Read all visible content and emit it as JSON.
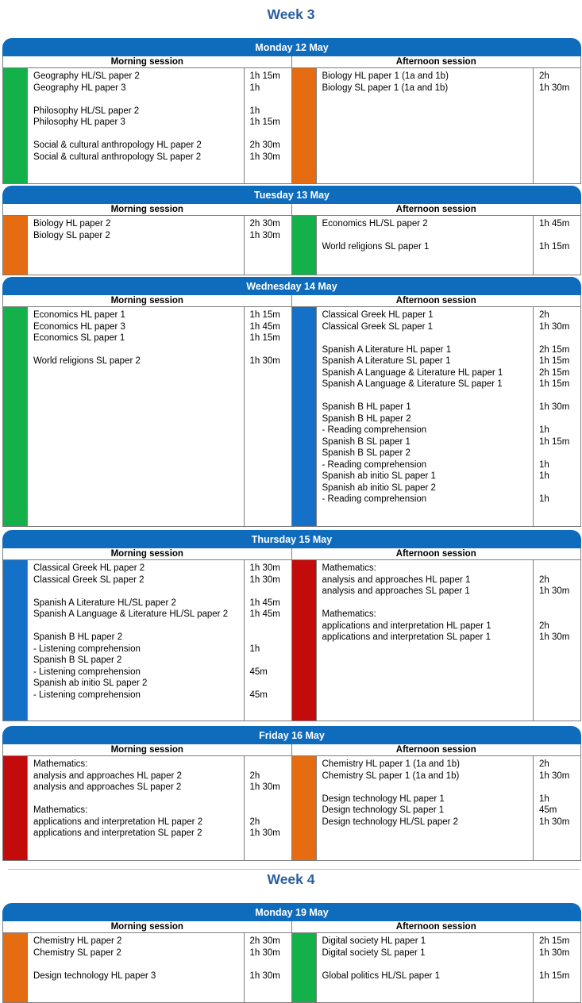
{
  "colors": {
    "green": "#14b14b",
    "orange": "#e56c10",
    "blue": "#1571c7",
    "red": "#c40b0b",
    "header_blue": "#0f6cbd",
    "title_blue": "#2c5f9e"
  },
  "weeks": [
    {
      "title": "Week 3",
      "days": [
        {
          "title": "Monday 12 May",
          "morning": {
            "label": "Morning session",
            "color": "green",
            "subjects": [
              "Geography HL/SL paper 2",
              "Geography HL paper 3",
              "",
              "Philosophy HL/SL paper 2",
              "Philosophy HL paper 3",
              "",
              "Social & cultural anthropology HL paper 2",
              "Social & cultural anthropology SL paper 2"
            ],
            "durations": [
              "1h 15m",
              "1h",
              "",
              "1h",
              "1h 15m",
              "",
              "2h 30m",
              "1h 30m"
            ]
          },
          "afternoon": {
            "label": "Afternoon session",
            "color": "orange",
            "subjects": [
              "Biology HL paper 1 (1a and 1b)",
              "Biology SL paper 1 (1a and 1b)"
            ],
            "durations": [
              "2h",
              "1h 30m"
            ]
          }
        },
        {
          "title": "Tuesday 13 May",
          "morning": {
            "label": "Morning session",
            "color": "orange",
            "subjects": [
              "Biology HL paper 2",
              "Biology SL paper 2"
            ],
            "durations": [
              "2h 30m",
              "1h 30m"
            ]
          },
          "afternoon": {
            "label": "Afternoon session",
            "color": "green",
            "subjects": [
              "Economics HL/SL paper 2",
              "",
              "World religions SL paper 1"
            ],
            "durations": [
              "1h 45m",
              "",
              "1h 15m"
            ]
          }
        },
        {
          "title": "Wednesday 14 May",
          "morning": {
            "label": "Morning session",
            "color": "green",
            "subjects": [
              "Economics HL paper 1",
              "Economics HL paper 3",
              "Economics SL paper 1",
              "",
              "World religions SL paper 2"
            ],
            "durations": [
              "1h 15m",
              "1h 45m",
              "1h 15m",
              "",
              "1h 30m"
            ]
          },
          "afternoon": {
            "label": "Afternoon session",
            "color": "blue",
            "subjects": [
              "Classical Greek HL paper 1",
              "Classical Greek SL paper 1",
              "",
              "Spanish A Literature HL paper 1",
              "Spanish A Literature SL paper 1",
              "Spanish A Language & Literature HL paper 1",
              "Spanish A Language & Literature SL paper 1",
              "",
              "Spanish B HL paper 1",
              "Spanish B HL paper 2",
              "- Reading comprehension",
              "Spanish B SL paper 1",
              "Spanish B SL paper 2",
              "- Reading comprehension",
              "Spanish ab initio SL paper 1",
              "Spanish ab initio SL paper 2",
              "- Reading comprehension"
            ],
            "durations": [
              "2h",
              "1h 30m",
              "",
              "2h 15m",
              "1h 15m",
              "2h 15m",
              "1h 15m",
              "",
              "1h 30m",
              "",
              "1h",
              "1h 15m",
              "",
              "1h",
              "1h",
              "",
              "1h"
            ]
          }
        },
        {
          "title": "Thursday 15 May",
          "morning": {
            "label": "Morning session",
            "color": "blue",
            "subjects": [
              "Classical Greek HL paper 2",
              "Classical Greek SL paper 2",
              "",
              "Spanish A Literature HL/SL paper 2",
              "Spanish A Language & Literature HL/SL paper 2",
              "",
              "Spanish B HL paper 2",
              "- Listening comprehension",
              "Spanish B SL paper 2",
              "- Listening comprehension",
              "Spanish ab initio SL paper 2",
              "- Listening comprehension"
            ],
            "durations": [
              "1h 30m",
              "1h 30m",
              "",
              "1h 45m",
              "1h 45m",
              "",
              "",
              "1h",
              "",
              "45m",
              "",
              "45m"
            ]
          },
          "afternoon": {
            "label": "Afternoon session",
            "color": "red",
            "subjects": [
              "Mathematics:",
              "analysis and approaches HL paper 1",
              "analysis and approaches SL paper 1",
              "",
              "Mathematics:",
              "applications and interpretation HL paper 1",
              "applications and interpretation SL paper 1"
            ],
            "durations": [
              "",
              "2h",
              "1h 30m",
              "",
              "",
              "2h",
              "1h 30m"
            ]
          }
        },
        {
          "title": "Friday 16 May",
          "morning": {
            "label": "Morning session",
            "color": "red",
            "subjects": [
              "Mathematics:",
              "analysis and approaches HL paper 2",
              "analysis and approaches SL paper 2",
              "",
              "Mathematics:",
              "applications and interpretation HL paper 2",
              "applications and interpretation SL paper 2"
            ],
            "durations": [
              "",
              "2h",
              "1h 30m",
              "",
              "",
              "2h",
              "1h 30m"
            ]
          },
          "afternoon": {
            "label": "Afternoon session",
            "color": "orange",
            "subjects": [
              "Chemistry HL paper 1 (1a and 1b)",
              "Chemistry SL paper 1 (1a and 1b)",
              "",
              "Design technology HL paper 1",
              "Design technology SL paper 1",
              "Design technology HL/SL paper 2"
            ],
            "durations": [
              "2h",
              "1h 30m",
              "",
              "1h",
              "45m",
              "1h 30m"
            ]
          }
        }
      ]
    },
    {
      "title": "Week 4",
      "days": [
        {
          "title": "Monday 19 May",
          "morning": {
            "label": "Morning session",
            "color": "orange",
            "subjects": [
              "Chemistry HL paper 2",
              "Chemistry SL paper 2",
              "",
              "Design technology HL paper 3"
            ],
            "durations": [
              "2h 30m",
              "1h 30m",
              "",
              "1h 30m"
            ]
          },
          "afternoon": {
            "label": "Afternoon session",
            "color": "green",
            "subjects": [
              "Digital society HL paper 1",
              "Digital society SL paper 1",
              "",
              "Global politics HL/SL paper 1"
            ],
            "durations": [
              "2h 15m",
              "1h 30m",
              "",
              "1h 15m"
            ]
          }
        }
      ]
    }
  ]
}
